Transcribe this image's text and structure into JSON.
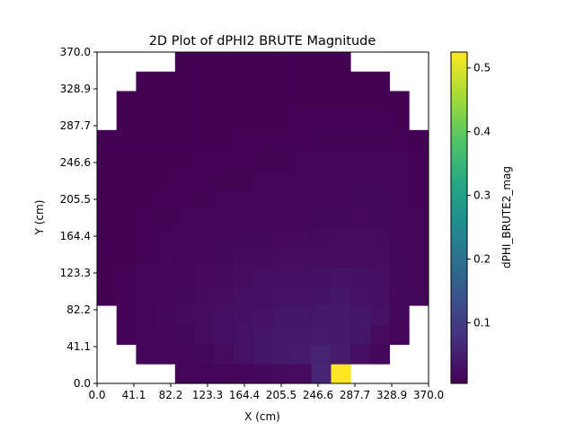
{
  "chart_data": {
    "type": "heatmap",
    "title": "2D Plot of dPHI2 BRUTE Magnitude",
    "xlabel": "X (cm)",
    "ylabel": "Y (cm)",
    "xlim": [
      0.0,
      370.0
    ],
    "ylim": [
      0.0,
      370.0
    ],
    "x_tick_labels": [
      "0.0",
      "41.1",
      "82.2",
      "123.3",
      "164.4",
      "205.5",
      "246.6",
      "287.7",
      "328.9",
      "370.0"
    ],
    "y_tick_labels": [
      "0.0",
      "41.1",
      "82.2",
      "123.3",
      "164.4",
      "205.5",
      "246.6",
      "287.7",
      "328.9",
      "370.0"
    ],
    "colormap": "viridis",
    "colorbar": {
      "label": "dPHI_BRUTE2_mag",
      "vmin": 0.005,
      "vmax": 0.525,
      "tick_values": [
        0.1,
        0.2,
        0.3,
        0.4,
        0.5
      ],
      "tick_labels": [
        "0.1",
        "0.2",
        "0.3",
        "0.4",
        "0.5"
      ]
    },
    "grid": false,
    "ny": 17,
    "nx": 17,
    "rows_note_order": "bottom-to-top",
    "values": [
      [
        null,
        null,
        null,
        null,
        0.01,
        0.01,
        0.012,
        0.013,
        0.015,
        0.018,
        0.02,
        0.06,
        0.525,
        null,
        null,
        null,
        null
      ],
      [
        null,
        null,
        0.01,
        0.011,
        0.012,
        0.015,
        0.02,
        0.03,
        0.035,
        0.04,
        0.045,
        0.055,
        0.045,
        0.025,
        0.015,
        null,
        null
      ],
      [
        null,
        0.008,
        0.01,
        0.012,
        0.015,
        0.02,
        0.025,
        0.03,
        0.035,
        0.04,
        0.04,
        0.045,
        0.04,
        0.035,
        0.02,
        0.012,
        null
      ],
      [
        null,
        0.008,
        0.01,
        0.015,
        0.018,
        0.02,
        0.025,
        0.028,
        0.03,
        0.035,
        0.035,
        0.04,
        0.04,
        0.035,
        0.03,
        0.015,
        null
      ],
      [
        0.006,
        0.008,
        0.01,
        0.012,
        0.015,
        0.018,
        0.022,
        0.025,
        0.028,
        0.03,
        0.03,
        0.032,
        0.035,
        0.03,
        0.028,
        0.015,
        0.01
      ],
      [
        0.006,
        0.008,
        0.01,
        0.012,
        0.014,
        0.016,
        0.018,
        0.022,
        0.025,
        0.025,
        0.025,
        0.028,
        0.03,
        0.028,
        0.025,
        0.015,
        0.01
      ],
      [
        0.006,
        0.007,
        0.008,
        0.01,
        0.012,
        0.014,
        0.015,
        0.018,
        0.018,
        0.02,
        0.02,
        0.02,
        0.022,
        0.02,
        0.02,
        0.015,
        0.01
      ],
      [
        0.006,
        0.007,
        0.008,
        0.01,
        0.011,
        0.012,
        0.013,
        0.015,
        0.015,
        0.016,
        0.017,
        0.018,
        0.02,
        0.02,
        0.018,
        0.013,
        0.01
      ],
      [
        0.006,
        0.007,
        0.008,
        0.009,
        0.01,
        0.011,
        0.012,
        0.012,
        0.013,
        0.014,
        0.014,
        0.015,
        0.015,
        0.016,
        0.015,
        0.012,
        0.01
      ],
      [
        0.006,
        0.006,
        0.007,
        0.008,
        0.008,
        0.009,
        0.01,
        0.01,
        0.011,
        0.012,
        0.012,
        0.013,
        0.014,
        0.015,
        0.015,
        0.012,
        0.008
      ],
      [
        0.006,
        0.006,
        0.007,
        0.007,
        0.008,
        0.008,
        0.009,
        0.009,
        0.01,
        0.01,
        0.011,
        0.012,
        0.012,
        0.013,
        0.013,
        0.011,
        0.008
      ],
      [
        0.006,
        0.006,
        0.006,
        0.007,
        0.007,
        0.008,
        0.008,
        0.008,
        0.009,
        0.009,
        0.01,
        0.01,
        0.011,
        0.011,
        0.011,
        0.01,
        0.008
      ],
      [
        0.006,
        0.006,
        0.006,
        0.006,
        0.007,
        0.007,
        0.007,
        0.008,
        0.008,
        0.008,
        0.008,
        0.009,
        0.009,
        0.009,
        0.009,
        0.008,
        0.007
      ],
      [
        null,
        0.006,
        0.006,
        0.006,
        0.006,
        0.007,
        0.007,
        0.007,
        0.007,
        0.007,
        0.008,
        0.008,
        0.008,
        0.008,
        0.008,
        0.007,
        null
      ],
      [
        null,
        0.006,
        0.006,
        0.006,
        0.006,
        0.006,
        0.006,
        0.006,
        0.007,
        0.007,
        0.007,
        0.007,
        0.007,
        0.007,
        0.007,
        0.007,
        null
      ],
      [
        null,
        null,
        0.006,
        0.006,
        0.006,
        0.006,
        0.006,
        0.006,
        0.006,
        0.006,
        0.006,
        0.006,
        0.006,
        0.006,
        0.006,
        null,
        null
      ],
      [
        null,
        null,
        null,
        null,
        0.006,
        0.006,
        0.006,
        0.006,
        0.006,
        0.006,
        0.006,
        0.006,
        0.006,
        null,
        null,
        null,
        null
      ]
    ]
  }
}
